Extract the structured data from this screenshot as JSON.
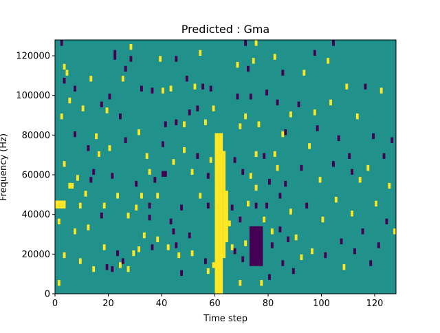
{
  "chart_data": {
    "type": "heatmap",
    "title": "Predicted : Gma",
    "xlabel": "Time step",
    "ylabel": "Frequency (Hz)",
    "xlim": [
      0,
      128
    ],
    "ylim": [
      0,
      128000
    ],
    "n_cols": 128,
    "n_rows": 44,
    "row_height_hz": 2909,
    "x_ticks": [
      0,
      20,
      40,
      60,
      80,
      100,
      120
    ],
    "x_tick_labels": [
      "0",
      "20",
      "40",
      "60",
      "80",
      "100",
      "120"
    ],
    "y_ticks": [
      0,
      20000,
      40000,
      60000,
      80000,
      100000,
      120000
    ],
    "y_tick_labels": [
      "0",
      "20000",
      "40000",
      "60000",
      "80000",
      "100000",
      "120000"
    ],
    "colormap": {
      "low": "#440154",
      "mid": "#21918c",
      "high": "#fde725"
    },
    "background_value": 0,
    "value_legend": {
      "-1": "#440154",
      "0": "#21918c",
      "1": "#fde725"
    },
    "dense_bands": [
      {
        "x": [
          60,
          63
        ],
        "y": [
          0,
          81000
        ],
        "value": 1
      },
      {
        "x": [
          63,
          64
        ],
        "y": [
          18000,
          72000
        ],
        "value": 1
      },
      {
        "x": [
          64,
          65
        ],
        "y": [
          26000,
          52000
        ],
        "value": 1
      },
      {
        "x": [
          73,
          78
        ],
        "y": [
          14000,
          34000
        ],
        "value": -1
      },
      {
        "x": [
          0,
          4
        ],
        "y": [
          43000,
          47000
        ],
        "value": 1
      }
    ],
    "cells": [
      [
        2,
        125000,
        -1
      ],
      [
        1,
        4000,
        1
      ],
      [
        1,
        35000,
        1
      ],
      [
        2,
        88000,
        1
      ],
      [
        3,
        113000,
        1
      ],
      [
        3,
        106000,
        -1
      ],
      [
        3,
        64000,
        1
      ],
      [
        3,
        18000,
        1
      ],
      [
        4,
        110000,
        1
      ],
      [
        5,
        96000,
        1
      ],
      [
        5,
        53000,
        1
      ],
      [
        6,
        53000,
        1
      ],
      [
        7,
        102000,
        -1
      ],
      [
        7,
        79000,
        -1
      ],
      [
        8,
        57000,
        1
      ],
      [
        9,
        43000,
        1
      ],
      [
        9,
        15000,
        1
      ],
      [
        10,
        92000,
        1
      ],
      [
        11,
        49000,
        1
      ],
      [
        12,
        72000,
        -1
      ],
      [
        12,
        32000,
        1
      ],
      [
        13,
        107000,
        1
      ],
      [
        13,
        56000,
        -1
      ],
      [
        14,
        11000,
        1
      ],
      [
        15,
        78000,
        1
      ],
      [
        16,
        69000,
        1
      ],
      [
        17,
        94000,
        -1
      ],
      [
        17,
        38000,
        -1
      ],
      [
        18,
        43000,
        1
      ],
      [
        18,
        22000,
        1
      ],
      [
        19,
        12000,
        -1
      ],
      [
        19,
        91000,
        1
      ],
      [
        20,
        72000,
        1
      ],
      [
        20,
        98000,
        -1
      ],
      [
        21,
        58000,
        -1
      ],
      [
        21,
        11000,
        -1
      ],
      [
        22,
        120000,
        -1
      ],
      [
        22,
        118000,
        -1
      ],
      [
        23,
        48000,
        1
      ],
      [
        23,
        19000,
        -1
      ],
      [
        24,
        13000,
        1
      ],
      [
        24,
        88000,
        -1
      ],
      [
        25,
        107000,
        1
      ],
      [
        25,
        15000,
        -1
      ],
      [
        26,
        76000,
        -1
      ],
      [
        26,
        112000,
        -1
      ],
      [
        27,
        38000,
        1
      ],
      [
        27,
        11000,
        1
      ],
      [
        28,
        123000,
        1
      ],
      [
        28,
        117000,
        -1
      ],
      [
        29,
        19000,
        1
      ],
      [
        30,
        42000,
        1
      ],
      [
        30,
        54000,
        -1
      ],
      [
        31,
        80000,
        1
      ],
      [
        31,
        21000,
        1
      ],
      [
        32,
        102000,
        -1
      ],
      [
        32,
        48000,
        1
      ],
      [
        33,
        28000,
        1
      ],
      [
        34,
        68000,
        1
      ],
      [
        35,
        60000,
        1
      ],
      [
        35,
        43000,
        -1
      ],
      [
        35,
        37000,
        -1
      ],
      [
        36,
        101000,
        -1
      ],
      [
        36,
        22000,
        -1
      ],
      [
        37,
        56000,
        -1
      ],
      [
        38,
        26000,
        1
      ],
      [
        38,
        48000,
        1
      ],
      [
        39,
        117000,
        1
      ],
      [
        40,
        101000,
        1
      ],
      [
        40,
        74000,
        -1
      ],
      [
        41,
        59000,
        -1
      ],
      [
        41,
        84000,
        -1
      ],
      [
        42,
        22000,
        1
      ],
      [
        43,
        102000,
        1
      ],
      [
        43,
        35000,
        -1
      ],
      [
        44,
        65000,
        1
      ],
      [
        44,
        30000,
        -1
      ],
      [
        45,
        117000,
        -1
      ],
      [
        45,
        85000,
        -1
      ],
      [
        45,
        23000,
        -1
      ],
      [
        46,
        18000,
        1
      ],
      [
        47,
        42000,
        -1
      ],
      [
        47,
        9000,
        -1
      ],
      [
        48,
        71000,
        1
      ],
      [
        48,
        84000,
        1
      ],
      [
        49,
        107000,
        -1
      ],
      [
        50,
        90000,
        -1
      ],
      [
        50,
        28000,
        -1
      ],
      [
        51,
        60000,
        1
      ],
      [
        51,
        19000,
        1
      ],
      [
        52,
        103000,
        1
      ],
      [
        53,
        92000,
        -1
      ],
      [
        53,
        68000,
        -1
      ],
      [
        54,
        120000,
        1
      ],
      [
        54,
        48000,
        1
      ],
      [
        55,
        103000,
        -1
      ],
      [
        56,
        85000,
        1
      ],
      [
        56,
        15000,
        -1
      ],
      [
        57,
        58000,
        -1
      ],
      [
        57,
        43000,
        -1
      ],
      [
        58,
        102000,
        -1
      ],
      [
        58,
        66000,
        1
      ],
      [
        59,
        13000,
        1
      ],
      [
        59,
        92000,
        1
      ],
      [
        65,
        34000,
        1
      ],
      [
        66,
        22000,
        1
      ],
      [
        67,
        66000,
        -1
      ],
      [
        67,
        20000,
        -1
      ],
      [
        68,
        114000,
        1
      ],
      [
        68,
        98000,
        -1
      ],
      [
        69,
        83000,
        1
      ],
      [
        69,
        36000,
        -1
      ],
      [
        70,
        60000,
        -1
      ],
      [
        70,
        16000,
        -1
      ],
      [
        71,
        24000,
        1
      ],
      [
        71,
        88000,
        1
      ],
      [
        72,
        112000,
        -1
      ],
      [
        72,
        44000,
        1
      ],
      [
        73,
        98000,
        -1
      ],
      [
        73,
        58000,
        1
      ],
      [
        74,
        116000,
        1
      ],
      [
        75,
        69000,
        1
      ],
      [
        75,
        52000,
        1
      ],
      [
        75,
        43000,
        -1
      ],
      [
        76,
        84000,
        1
      ],
      [
        77,
        14000,
        -1
      ],
      [
        78,
        36000,
        1
      ],
      [
        78,
        68000,
        -1
      ],
      [
        79,
        100000,
        -1
      ],
      [
        79,
        43000,
        -1
      ],
      [
        80,
        55000,
        -1
      ],
      [
        80,
        7000,
        -1
      ],
      [
        81,
        30000,
        1
      ],
      [
        81,
        23000,
        -1
      ],
      [
        82,
        118000,
        1
      ],
      [
        82,
        69000,
        1
      ],
      [
        83,
        95000,
        -1
      ],
      [
        83,
        62000,
        1
      ],
      [
        84,
        48000,
        -1
      ],
      [
        84,
        31000,
        -1
      ],
      [
        85,
        14000,
        -1
      ],
      [
        85,
        110000,
        -1
      ],
      [
        86,
        80000,
        -1
      ],
      [
        86,
        54000,
        -1
      ],
      [
        87,
        26000,
        -1
      ],
      [
        88,
        40000,
        1
      ],
      [
        88,
        89000,
        1
      ],
      [
        89,
        10000,
        -1
      ],
      [
        90,
        27000,
        1
      ],
      [
        91,
        94000,
        -1
      ],
      [
        92,
        62000,
        -1
      ],
      [
        93,
        110000,
        1
      ],
      [
        94,
        43000,
        -1
      ],
      [
        95,
        73000,
        1
      ],
      [
        96,
        20000,
        1
      ],
      [
        97,
        90000,
        1
      ],
      [
        98,
        82000,
        -1
      ],
      [
        99,
        56000,
        1
      ],
      [
        100,
        36000,
        1
      ],
      [
        101,
        18000,
        -1
      ],
      [
        102,
        116000,
        1
      ],
      [
        103,
        95000,
        1
      ],
      [
        104,
        64000,
        -1
      ],
      [
        105,
        46000,
        1
      ],
      [
        106,
        77000,
        -1
      ],
      [
        107,
        25000,
        -1
      ],
      [
        108,
        12000,
        1
      ],
      [
        109,
        103000,
        1
      ],
      [
        110,
        68000,
        -1
      ],
      [
        111,
        39000,
        1
      ],
      [
        112,
        20000,
        -1
      ],
      [
        113,
        88000,
        1
      ],
      [
        114,
        56000,
        1
      ],
      [
        115,
        30000,
        -1
      ],
      [
        116,
        103000,
        -1
      ],
      [
        117,
        62000,
        1
      ],
      [
        118,
        14000,
        -1
      ],
      [
        119,
        78000,
        -1
      ],
      [
        120,
        44000,
        1
      ],
      [
        121,
        23000,
        -1
      ],
      [
        122,
        101000,
        1
      ],
      [
        123,
        68000,
        -1
      ],
      [
        124,
        35000,
        -1
      ],
      [
        125,
        53000,
        1
      ],
      [
        126,
        76000,
        -1
      ],
      [
        127,
        30000,
        1
      ],
      [
        97,
        120000,
        -1
      ],
      [
        104,
        125000,
        -1
      ],
      [
        85,
        79000,
        1
      ],
      [
        92,
        17000,
        1
      ],
      [
        111,
        60000,
        -1
      ],
      [
        66,
        42000,
        -1
      ],
      [
        71,
        125000,
        -1
      ],
      [
        75,
        125000,
        1
      ],
      [
        69,
        4000,
        1
      ],
      [
        77,
        4000,
        1
      ],
      [
        57,
        10000,
        1
      ],
      [
        40,
        59000,
        -1
      ],
      [
        14,
        60000,
        -1
      ],
      [
        7,
        30000,
        1
      ]
    ]
  }
}
